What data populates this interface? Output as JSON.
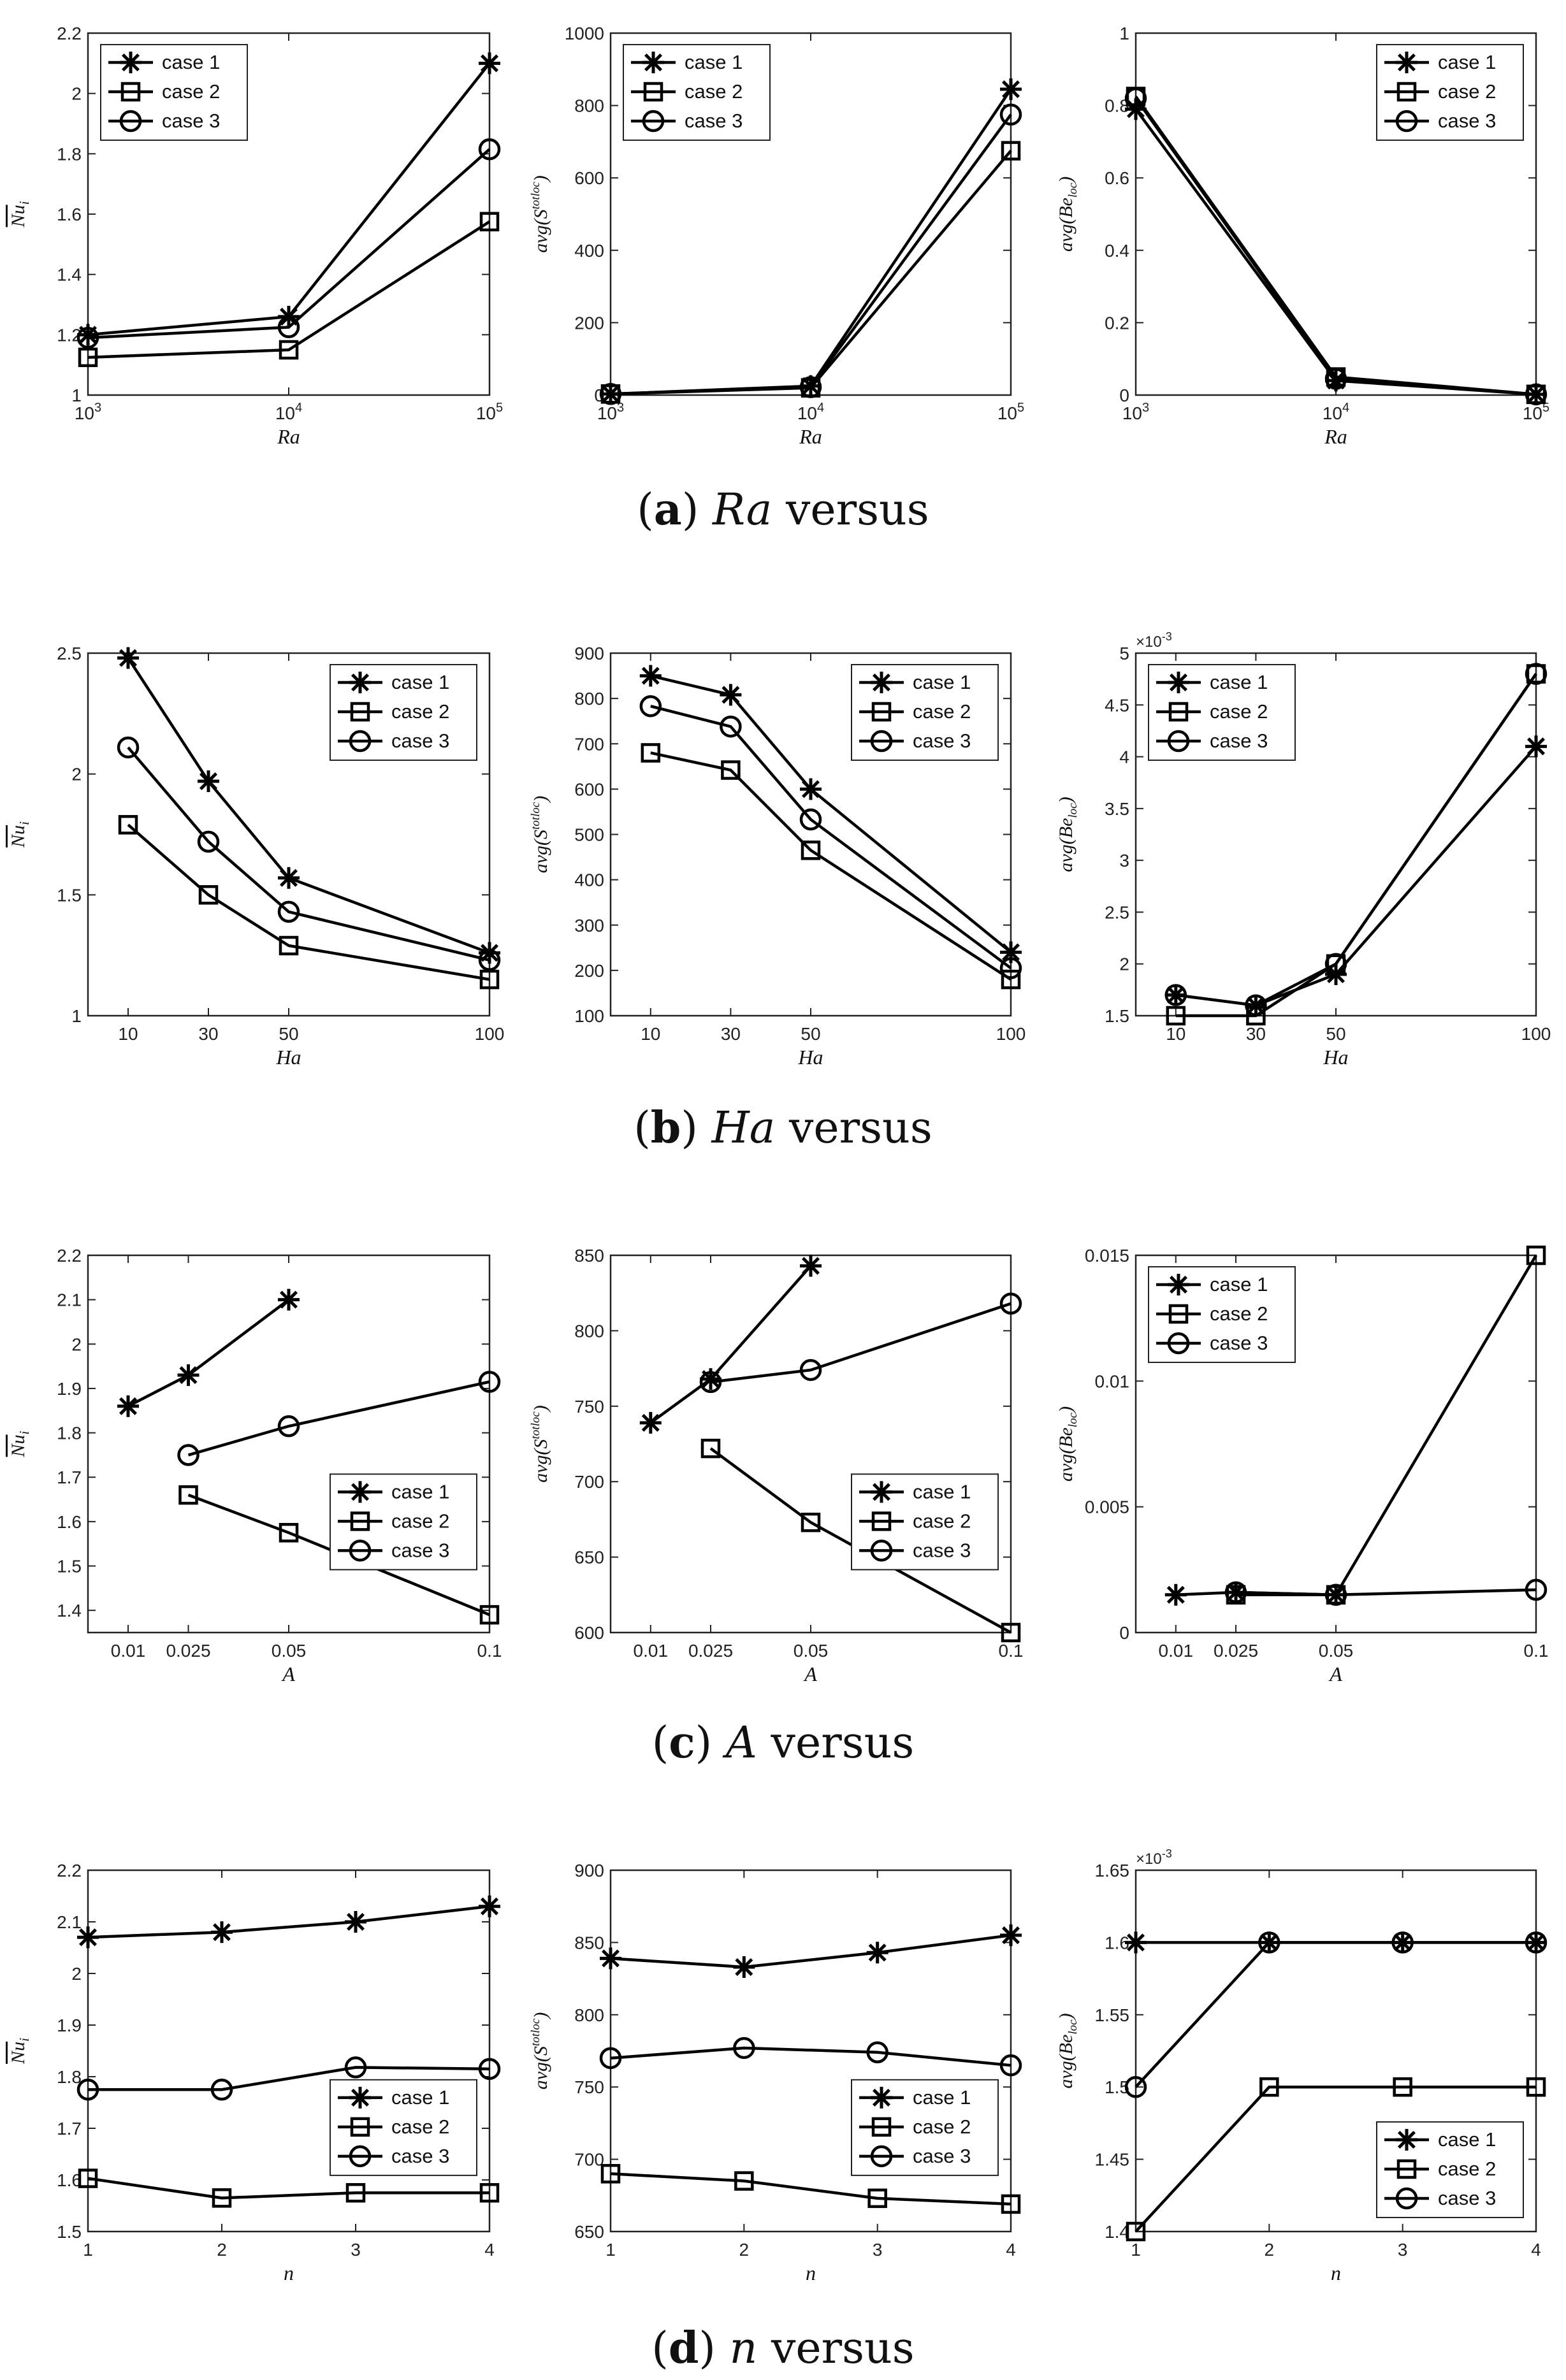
{
  "marker_legend": [
    "case 1",
    "case 2",
    "case 3"
  ],
  "captions": [
    {
      "letter": "a",
      "variable": "Ra",
      "suffix": "versus"
    },
    {
      "letter": "b",
      "variable": "Ha",
      "suffix": "versus"
    },
    {
      "letter": "c",
      "variable": "A",
      "suffix": "versus"
    },
    {
      "letter": "d",
      "variable": "n",
      "suffix": "versus"
    }
  ],
  "chart_data": [
    {
      "id": "a1",
      "type": "line",
      "xscale": "log",
      "xlabel": "Ra",
      "ylabel": "Nu_i (mean)",
      "x": [
        1000,
        10000,
        100000
      ],
      "xticks": [
        1000,
        10000,
        100000
      ],
      "xticklabels": [
        "10^3",
        "10^4",
        "10^5"
      ],
      "ylim": [
        1,
        2.2
      ],
      "yticks": [
        1,
        1.2,
        1.4,
        1.6,
        1.8,
        2,
        2.2
      ],
      "yticklabels": [
        "1",
        "1.2",
        "1.4",
        "1.6",
        "1.8",
        "2",
        "2.2"
      ],
      "legend": "top-left",
      "series": [
        {
          "name": "case 1",
          "values": [
            1.2,
            1.26,
            2.1
          ]
        },
        {
          "name": "case 2",
          "values": [
            1.125,
            1.15,
            1.575
          ]
        },
        {
          "name": "case 3",
          "values": [
            1.19,
            1.225,
            1.815
          ]
        }
      ]
    },
    {
      "id": "a2",
      "type": "line",
      "xscale": "log",
      "xlabel": "Ra",
      "ylabel": "avg(S_loc^tot)",
      "x": [
        1000,
        10000,
        100000
      ],
      "xticks": [
        1000,
        10000,
        100000
      ],
      "xticklabels": [
        "10^3",
        "10^4",
        "10^5"
      ],
      "ylim": [
        0,
        1000
      ],
      "yticks": [
        0,
        200,
        400,
        600,
        800,
        1000
      ],
      "yticklabels": [
        "0",
        "200",
        "400",
        "600",
        "800",
        "1000"
      ],
      "legend": "top-left",
      "series": [
        {
          "name": "case 1",
          "values": [
            3,
            25,
            845
          ]
        },
        {
          "name": "case 2",
          "values": [
            3,
            20,
            675
          ]
        },
        {
          "name": "case 3",
          "values": [
            3,
            22,
            775
          ]
        }
      ]
    },
    {
      "id": "a3",
      "type": "line",
      "xscale": "log",
      "xlabel": "Ra",
      "ylabel": "avg(Be_loc)",
      "x": [
        1000,
        10000,
        100000
      ],
      "xticks": [
        1000,
        10000,
        100000
      ],
      "xticklabels": [
        "10^3",
        "10^4",
        "10^5"
      ],
      "ylim": [
        0,
        1
      ],
      "yticks": [
        0,
        0.2,
        0.4,
        0.6,
        0.8,
        1
      ],
      "yticklabels": [
        "0",
        "0.2",
        "0.4",
        "0.6",
        "0.8",
        "1"
      ],
      "legend": "top-right",
      "series": [
        {
          "name": "case 1",
          "values": [
            0.79,
            0.04,
            0.002
          ]
        },
        {
          "name": "case 2",
          "values": [
            0.825,
            0.05,
            0.002
          ]
        },
        {
          "name": "case 3",
          "values": [
            0.82,
            0.045,
            0.002
          ]
        }
      ]
    },
    {
      "id": "b1",
      "type": "line",
      "xlabel": "Ha",
      "ylabel": "Nu_i (mean)",
      "x": [
        10,
        30,
        50,
        100
      ],
      "xlim": [
        0,
        100
      ],
      "xticks": [
        10,
        30,
        50,
        100
      ],
      "xticklabels": [
        "10",
        "30",
        "50",
        "100"
      ],
      "ylim": [
        1,
        2.5
      ],
      "yticks": [
        1,
        1.5,
        2,
        2.5
      ],
      "yticklabels": [
        "1",
        "1.5",
        "2",
        "2.5"
      ],
      "legend": "top-right",
      "series": [
        {
          "name": "case 1",
          "values": [
            2.48,
            1.97,
            1.57,
            1.26
          ]
        },
        {
          "name": "case 2",
          "values": [
            1.79,
            1.5,
            1.29,
            1.15
          ]
        },
        {
          "name": "case 3",
          "values": [
            2.11,
            1.72,
            1.43,
            1.23
          ]
        }
      ]
    },
    {
      "id": "b2",
      "type": "line",
      "xlabel": "Ha",
      "ylabel": "avg(S_loc^tot)",
      "x": [
        10,
        30,
        50,
        100
      ],
      "xlim": [
        0,
        100
      ],
      "xticks": [
        10,
        30,
        50,
        100
      ],
      "xticklabels": [
        "10",
        "30",
        "50",
        "100"
      ],
      "ylim": [
        100,
        900
      ],
      "yticks": [
        100,
        200,
        300,
        400,
        500,
        600,
        700,
        800,
        900
      ],
      "yticklabels": [
        "100",
        "200",
        "300",
        "400",
        "500",
        "600",
        "700",
        "800",
        "900"
      ],
      "legend": "top-right",
      "series": [
        {
          "name": "case 1",
          "values": [
            850,
            808,
            600,
            240
          ]
        },
        {
          "name": "case 2",
          "values": [
            680,
            642,
            465,
            180
          ]
        },
        {
          "name": "case 3",
          "values": [
            783,
            738,
            533,
            205
          ]
        }
      ]
    },
    {
      "id": "b3",
      "type": "line",
      "xlabel": "Ha",
      "ylabel": "avg(Be_loc)",
      "x": [
        10,
        30,
        50,
        100
      ],
      "xlim": [
        0,
        100
      ],
      "xticks": [
        10,
        30,
        50,
        100
      ],
      "xticklabels": [
        "10",
        "30",
        "50",
        "100"
      ],
      "ylim": [
        1.5,
        5
      ],
      "exponent": "×10^-3",
      "yticks": [
        1.5,
        2,
        2.5,
        3,
        3.5,
        4,
        4.5,
        5
      ],
      "yticklabels": [
        "1.5",
        "2",
        "2.5",
        "3",
        "3.5",
        "4",
        "4.5",
        "5"
      ],
      "legend": "top-left",
      "series": [
        {
          "name": "case 1",
          "values": [
            1.7,
            1.6,
            1.9,
            4.1
          ]
        },
        {
          "name": "case 2",
          "values": [
            1.5,
            1.5,
            2.0,
            4.8
          ]
        },
        {
          "name": "case 3",
          "values": [
            1.7,
            1.6,
            2.0,
            4.8
          ]
        }
      ]
    },
    {
      "id": "c1",
      "type": "line",
      "xlabel": "A",
      "ylabel": "Nu_i (mean)",
      "x": [
        0.01,
        0.025,
        0.05,
        0.1
      ],
      "xlim": [
        0,
        0.1
      ],
      "xticks": [
        0.01,
        0.025,
        0.05,
        0.1
      ],
      "xticklabels": [
        "0.01",
        "0.025",
        "0.05",
        "0.1"
      ],
      "ylim": [
        1.35,
        2.2
      ],
      "yticks": [
        1.4,
        1.5,
        1.6,
        1.7,
        1.8,
        1.9,
        2,
        2.1,
        2.2
      ],
      "yticklabels": [
        "1.4",
        "1.5",
        "1.6",
        "1.7",
        "1.8",
        "1.9",
        "2",
        "2.1",
        "2.2"
      ],
      "legend": "right",
      "series": [
        {
          "name": "case 1",
          "values": [
            1.86,
            1.93,
            2.1,
            null
          ]
        },
        {
          "name": "case 2",
          "values": [
            null,
            1.66,
            1.575,
            1.39
          ]
        },
        {
          "name": "case 3",
          "values": [
            null,
            1.75,
            1.815,
            1.915
          ]
        }
      ]
    },
    {
      "id": "c2",
      "type": "line",
      "xlabel": "A",
      "ylabel": "avg(S_loc^tot)",
      "x": [
        0.01,
        0.025,
        0.05,
        0.1
      ],
      "xlim": [
        0,
        0.1
      ],
      "xticks": [
        0.01,
        0.025,
        0.05,
        0.1
      ],
      "xticklabels": [
        "0.01",
        "0.025",
        "0.05",
        "0.1"
      ],
      "ylim": [
        600,
        850
      ],
      "yticks": [
        600,
        650,
        700,
        750,
        800,
        850
      ],
      "yticklabels": [
        "600",
        "650",
        "700",
        "750",
        "800",
        "850"
      ],
      "legend": "right",
      "series": [
        {
          "name": "case 1",
          "values": [
            739,
            768,
            843,
            null
          ]
        },
        {
          "name": "case 2",
          "values": [
            null,
            722,
            673,
            600
          ]
        },
        {
          "name": "case 3",
          "values": [
            null,
            766,
            774,
            818
          ]
        }
      ]
    },
    {
      "id": "c3",
      "type": "line",
      "xlabel": "A",
      "ylabel": "avg(Be_loc)",
      "x": [
        0.01,
        0.025,
        0.05,
        0.1
      ],
      "xlim": [
        0,
        0.1
      ],
      "xticks": [
        0.01,
        0.025,
        0.05,
        0.1
      ],
      "xticklabels": [
        "0.01",
        "0.025",
        "0.05",
        "0.1"
      ],
      "ylim": [
        0,
        0.015
      ],
      "yticks": [
        0,
        0.005,
        0.01,
        0.015
      ],
      "yticklabels": [
        "0",
        "0.005",
        "0.01",
        "0.015"
      ],
      "legend": "top-left",
      "series": [
        {
          "name": "case 1",
          "values": [
            0.0015,
            0.0016,
            0.0015,
            null
          ]
        },
        {
          "name": "case 2",
          "values": [
            null,
            0.0015,
            0.0015,
            0.015
          ]
        },
        {
          "name": "case 3",
          "values": [
            null,
            0.0016,
            0.0015,
            0.0017
          ]
        }
      ]
    },
    {
      "id": "d1",
      "type": "line",
      "xlabel": "n",
      "ylabel": "Nu_i (mean)",
      "x": [
        1,
        2,
        3,
        4
      ],
      "xlim": [
        1,
        4
      ],
      "xticks": [
        1,
        2,
        3,
        4
      ],
      "xticklabels": [
        "1",
        "2",
        "3",
        "4"
      ],
      "ylim": [
        1.5,
        2.2
      ],
      "yticks": [
        1.5,
        1.6,
        1.7,
        1.8,
        1.9,
        2,
        2.1,
        2.2
      ],
      "yticklabels": [
        "1.5",
        "1.6",
        "1.7",
        "1.8",
        "1.9",
        "2",
        "2.1",
        "2.2"
      ],
      "legend": "right",
      "series": [
        {
          "name": "case 1",
          "values": [
            2.07,
            2.08,
            2.1,
            2.13
          ]
        },
        {
          "name": "case 2",
          "values": [
            1.603,
            1.565,
            1.575,
            1.575
          ]
        },
        {
          "name": "case 3",
          "values": [
            1.775,
            1.775,
            1.818,
            1.815
          ]
        }
      ]
    },
    {
      "id": "d2",
      "type": "line",
      "xlabel": "n",
      "ylabel": "avg(S_loc^tot)",
      "x": [
        1,
        2,
        3,
        4
      ],
      "xlim": [
        1,
        4
      ],
      "xticks": [
        1,
        2,
        3,
        4
      ],
      "xticklabels": [
        "1",
        "2",
        "3",
        "4"
      ],
      "ylim": [
        650,
        900
      ],
      "yticks": [
        650,
        700,
        750,
        800,
        850,
        900
      ],
      "yticklabels": [
        "650",
        "700",
        "750",
        "800",
        "850",
        "900"
      ],
      "legend": "right",
      "series": [
        {
          "name": "case 1",
          "values": [
            839,
            833,
            843,
            855
          ]
        },
        {
          "name": "case 2",
          "values": [
            690,
            685,
            673,
            669
          ]
        },
        {
          "name": "case 3",
          "values": [
            770,
            777,
            774,
            765
          ]
        }
      ]
    },
    {
      "id": "d3",
      "type": "line",
      "xlabel": "n",
      "ylabel": "avg(Be_loc)",
      "x": [
        1,
        2,
        3,
        4
      ],
      "xlim": [
        1,
        4
      ],
      "xticks": [
        1,
        2,
        3,
        4
      ],
      "xticklabels": [
        "1",
        "2",
        "3",
        "4"
      ],
      "ylim": [
        1.4,
        1.65
      ],
      "exponent": "×10^-3",
      "yticks": [
        1.4,
        1.45,
        1.5,
        1.55,
        1.6,
        1.65
      ],
      "yticklabels": [
        "1.4",
        "1.45",
        "1.5",
        "1.55",
        "1.6",
        "1.65"
      ],
      "legend": "bottom-right",
      "series": [
        {
          "name": "case 1",
          "values": [
            1.6,
            1.6,
            1.6,
            1.6
          ]
        },
        {
          "name": "case 2",
          "values": [
            1.4,
            1.5,
            1.5,
            1.5
          ]
        },
        {
          "name": "case 3",
          "values": [
            1.5,
            1.6,
            1.6,
            1.6
          ]
        }
      ]
    }
  ]
}
